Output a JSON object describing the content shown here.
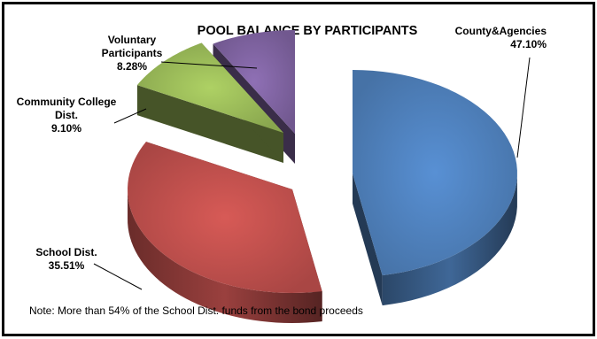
{
  "chart_data": {
    "type": "pie",
    "title": "POOL BALANCE BY PARTICIPANTS",
    "style": "3d-exploded",
    "slices": [
      {
        "name": "County&Agencies",
        "label_lines": [
          "County&Agencies"
        ],
        "value": 47.1,
        "value_label": "47.10%",
        "color": "#4f81bd"
      },
      {
        "name": "School Dist.",
        "label_lines": [
          "School Dist."
        ],
        "value": 35.51,
        "value_label": "35.51%",
        "color": "#c0504d"
      },
      {
        "name": "Community College Dist.",
        "label_lines": [
          "Community College",
          "Dist."
        ],
        "value": 9.1,
        "value_label": "9.10%",
        "color": "#9bbb59"
      },
      {
        "name": "Voluntary Participants",
        "label_lines": [
          "Voluntary",
          "Participants"
        ],
        "value": 8.28,
        "value_label": "8.28%",
        "color": "#8064a2"
      }
    ]
  },
  "note": "Note: More than 54% of the School Dist. funds from the bond proceeds"
}
